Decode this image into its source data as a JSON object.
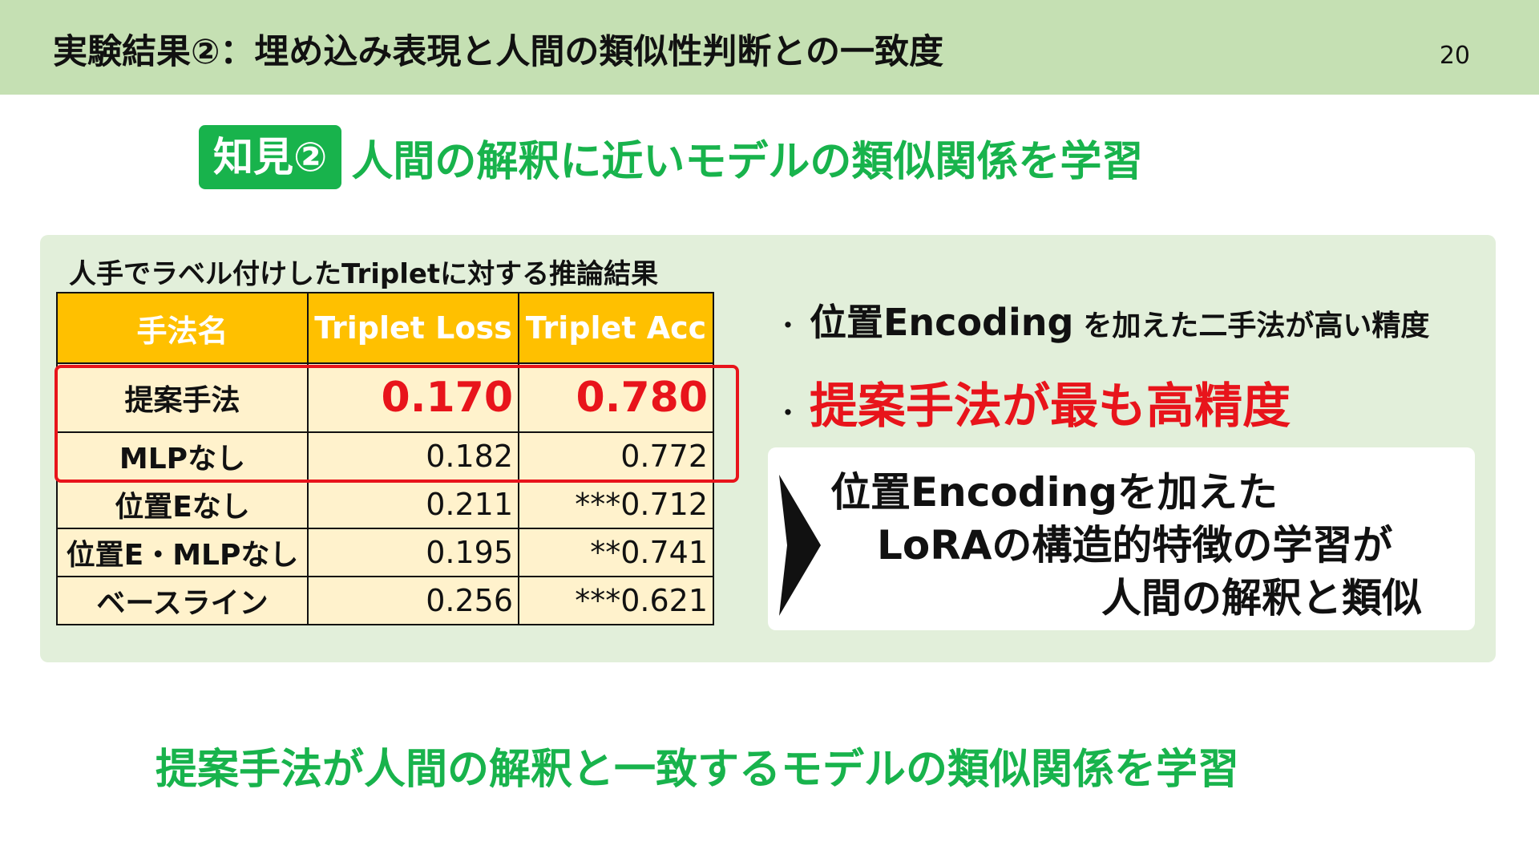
{
  "header": {
    "title": "実験結果②：埋め込み表現と人間の類似性判断との一致度",
    "page_number": "20"
  },
  "finding": {
    "badge": "知見②",
    "text": "人間の解釈に近いモデルの類似関係を学習"
  },
  "table": {
    "caption": "人手でラベル付けしたTripletに対する推論結果",
    "columns": [
      "手法名",
      "Triplet Loss",
      "Triplet Acc"
    ],
    "rows": [
      {
        "name": "提案手法",
        "loss": "0.170",
        "acc": "0.780"
      },
      {
        "name": "MLPなし",
        "loss": "0.182",
        "acc": "0.772"
      },
      {
        "name": "位置Eなし",
        "loss": "0.211",
        "acc": "***0.712"
      },
      {
        "name": "位置E・MLPなし",
        "loss": "0.195",
        "acc": "**0.741"
      },
      {
        "name": "ベースライン",
        "loss": "0.256",
        "acc": "***0.621"
      }
    ]
  },
  "bullets": {
    "dot": "・",
    "b1_main": "位置Encoding",
    "b1_rest": "を加えた二手法が高い精度",
    "b2_main": "提案手法が最も高精度"
  },
  "conclusion": {
    "line1": "位置Encodingを加えた",
    "line2": "LoRAの構造的特徴の学習が",
    "line3": "人間の解釈と類似"
  },
  "footer": {
    "text": "提案手法が人間の解釈と一致するモデルの類似関係を学習"
  },
  "colors": {
    "header_bg": "#c5e0b3",
    "accent_green": "#18b34c",
    "panel_bg": "#e2efda",
    "table_header": "#ffc000",
    "table_cell": "#fff2cc",
    "highlight_red": "#e8141b"
  }
}
